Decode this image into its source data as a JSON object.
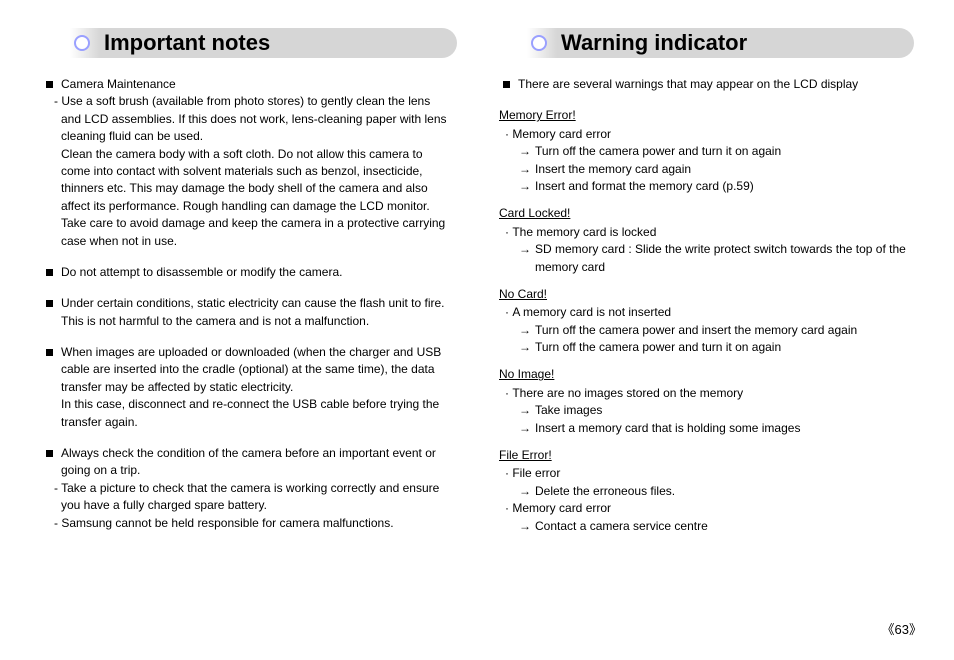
{
  "page_number": "63",
  "left": {
    "heading": "Important notes",
    "items": [
      {
        "lead": "Camera Maintenance",
        "dashes": [
          "Use a soft brush (available from photo stores) to gently clean the lens and LCD assemblies. If this does not work, lens-cleaning paper with lens cleaning fluid can be used."
        ],
        "plain": [
          "Clean the camera body with a soft cloth. Do not allow this camera to come into contact with solvent materials such as benzol, insecticide, thinners etc. This may damage the body shell of the camera and also affect its performance. Rough handling can damage the LCD monitor. Take care to avoid damage and keep the camera in a protective carrying case when not in use."
        ]
      },
      {
        "lead": "Do not attempt to disassemble or modify the camera."
      },
      {
        "lead": "Under certain conditions, static electricity can cause the flash unit to fire. This is not harmful to the camera and is not a malfunction."
      },
      {
        "lead": "When images are uploaded or downloaded (when the charger and USB cable are inserted into the cradle (optional) at the same time), the data transfer may be affected by static electricity.",
        "plain": [
          "In this case, disconnect and re-connect the USB cable before trying the transfer again."
        ]
      },
      {
        "lead": "Always check the condition of the camera before an important event or going on a trip.",
        "dashes": [
          "Take a picture to check that the camera is working correctly and ensure you have a fully charged spare battery.",
          "Samsung cannot be held responsible for camera malfunctions."
        ]
      }
    ]
  },
  "right": {
    "heading": "Warning indicator",
    "intro": "There are several warnings that may appear on the LCD display",
    "errors": [
      {
        "title": "Memory Error!",
        "subs": [
          {
            "label": "Memory card error",
            "arrows": [
              "Turn off the camera power and turn it on again",
              "Insert the memory card again",
              "Insert and format the memory card (p.59)"
            ]
          }
        ]
      },
      {
        "title": "Card Locked!",
        "subs": [
          {
            "label": "The memory card is locked",
            "arrows": [
              "SD memory card : Slide the write protect switch towards the top of the memory card"
            ]
          }
        ]
      },
      {
        "title": "No Card!",
        "subs": [
          {
            "label": "A memory card is not inserted",
            "arrows": [
              "Turn off the camera power and insert the memory card again",
              "Turn off the camera power and turn it on again"
            ]
          }
        ]
      },
      {
        "title": "No Image!",
        "subs": [
          {
            "label": "There are no images stored on the memory",
            "arrows": [
              "Take images",
              "Insert a memory card that is holding some images"
            ]
          }
        ]
      },
      {
        "title": "File Error!",
        "subs": [
          {
            "label": "File error",
            "arrows": [
              "Delete the erroneous files."
            ]
          },
          {
            "label": "Memory card error",
            "arrows": [
              "Contact a camera service centre"
            ]
          }
        ]
      }
    ]
  }
}
